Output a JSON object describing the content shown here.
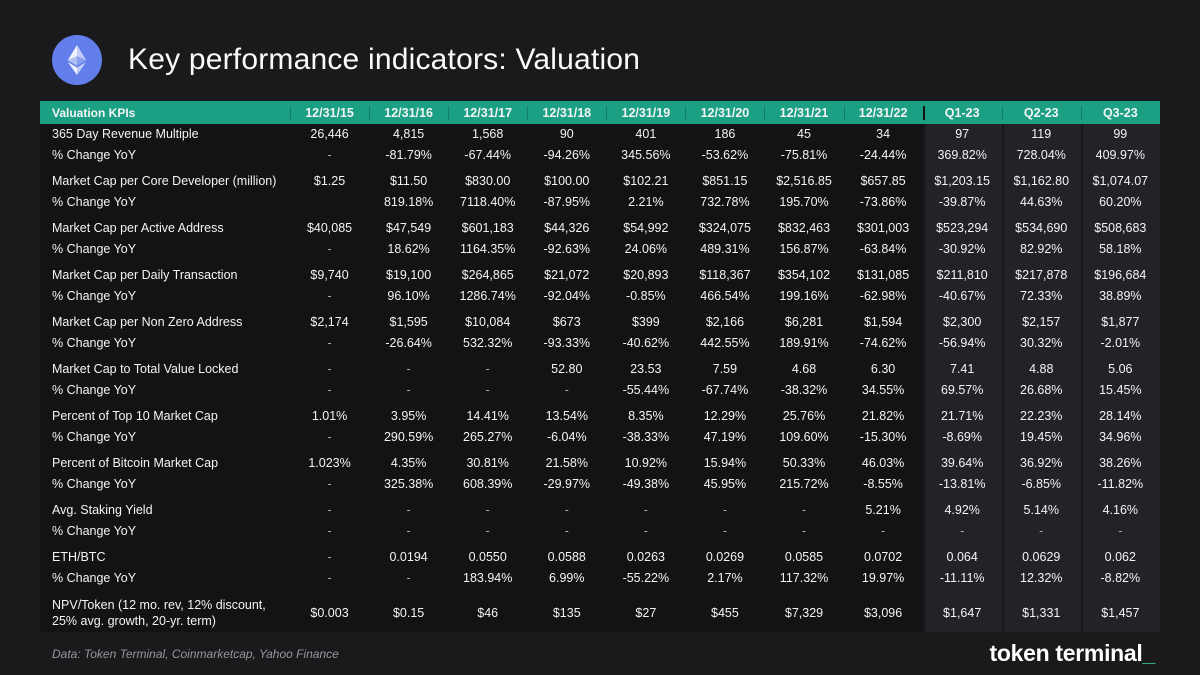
{
  "title": "Key performance indicators: Valuation",
  "colors": {
    "background": "#1a1a1d",
    "table_background": "#131316",
    "header_green": "#1CA084",
    "quarter_band": "#232327",
    "ethereum_blue": "#627EEA",
    "cursor_green": "#2EBD8C"
  },
  "icons": {
    "ethereum_logo": "eth-diamond-in-blue-circle",
    "logo_cursor_glyph": "_"
  },
  "footer": {
    "source": "Data: Token Terminal, Coinmarketcap, Yahoo Finance",
    "logo_text": "token terminal",
    "logo_cursor": "_"
  },
  "chart_data": {
    "type": "table",
    "title": "Key performance indicators: Valuation",
    "columns": [
      "Valuation KPIs",
      "12/31/15",
      "12/31/16",
      "12/31/17",
      "12/31/18",
      "12/31/19",
      "12/31/20",
      "12/31/21",
      "12/31/22",
      "Q1-23",
      "Q2-23",
      "Q3-23"
    ],
    "highlight_columns": [
      "Q1-23",
      "Q2-23",
      "Q3-23"
    ],
    "groups": [
      {
        "rows": [
          {
            "label": "365 Day Revenue Multiple",
            "values": [
              "26,446",
              "4,815",
              "1,568",
              "90",
              "401",
              "186",
              "45",
              "34",
              "97",
              "119",
              "99"
            ]
          },
          {
            "label": "% Change YoY",
            "values": [
              "-",
              "-81.79%",
              "-67.44%",
              "-94.26%",
              "345.56%",
              "-53.62%",
              "-75.81%",
              "-24.44%",
              "369.82%",
              "728.04%",
              "409.97%"
            ]
          }
        ]
      },
      {
        "rows": [
          {
            "label": "Market Cap per Core Developer (million)",
            "values": [
              "$1.25",
              "$11.50",
              "$830.00",
              "$100.00",
              "$102.21",
              "$851.15",
              "$2,516.85",
              "$657.85",
              "$1,203.15",
              "$1,162.80",
              "$1,074.07"
            ]
          },
          {
            "label": "% Change YoY",
            "values": [
              "",
              "819.18%",
              "7118.40%",
              "-87.95%",
              "2.21%",
              "732.78%",
              "195.70%",
              "-73.86%",
              "-39.87%",
              "44.63%",
              "60.20%"
            ]
          }
        ]
      },
      {
        "rows": [
          {
            "label": "Market Cap per Active Address",
            "values": [
              "$40,085",
              "$47,549",
              "$601,183",
              "$44,326",
              "$54,992",
              "$324,075",
              "$832,463",
              "$301,003",
              "$523,294",
              "$534,690",
              "$508,683"
            ]
          },
          {
            "label": "% Change YoY",
            "values": [
              "-",
              "18.62%",
              "1164.35%",
              "-92.63%",
              "24.06%",
              "489.31%",
              "156.87%",
              "-63.84%",
              "-30.92%",
              "82.92%",
              "58.18%"
            ]
          }
        ]
      },
      {
        "rows": [
          {
            "label": "Market Cap per Daily Transaction",
            "values": [
              "$9,740",
              "$19,100",
              "$264,865",
              "$21,072",
              "$20,893",
              "$118,367",
              "$354,102",
              "$131,085",
              "$211,810",
              "$217,878",
              "$196,684"
            ]
          },
          {
            "label": "% Change YoY",
            "values": [
              "-",
              "96.10%",
              "1286.74%",
              "-92.04%",
              "-0.85%",
              "466.54%",
              "199.16%",
              "-62.98%",
              "-40.67%",
              "72.33%",
              "38.89%"
            ]
          }
        ]
      },
      {
        "rows": [
          {
            "label": "Market Cap per Non Zero Address",
            "values": [
              "$2,174",
              "$1,595",
              "$10,084",
              "$673",
              "$399",
              "$2,166",
              "$6,281",
              "$1,594",
              "$2,300",
              "$2,157",
              "$1,877"
            ]
          },
          {
            "label": "% Change YoY",
            "values": [
              "-",
              "-26.64%",
              "532.32%",
              "-93.33%",
              "-40.62%",
              "442.55%",
              "189.91%",
              "-74.62%",
              "-56.94%",
              "30.32%",
              "-2.01%"
            ]
          }
        ]
      },
      {
        "rows": [
          {
            "label": "Market Cap to Total Value Locked",
            "values": [
              "-",
              "-",
              "-",
              "52.80",
              "23.53",
              "7.59",
              "4.68",
              "6.30",
              "7.41",
              "4.88",
              "5.06"
            ]
          },
          {
            "label": "% Change YoY",
            "values": [
              "-",
              "-",
              "-",
              "-",
              "-55.44%",
              "-67.74%",
              "-38.32%",
              "34.55%",
              "69.57%",
              "26.68%",
              "15.45%"
            ]
          }
        ]
      },
      {
        "rows": [
          {
            "label": "Percent of Top 10 Market Cap",
            "values": [
              "1.01%",
              "3.95%",
              "14.41%",
              "13.54%",
              "8.35%",
              "12.29%",
              "25.76%",
              "21.82%",
              "21.71%",
              "22.23%",
              "28.14%"
            ]
          },
          {
            "label": "% Change YoY",
            "values": [
              "-",
              "290.59%",
              "265.27%",
              "-6.04%",
              "-38.33%",
              "47.19%",
              "109.60%",
              "-15.30%",
              "-8.69%",
              "19.45%",
              "34.96%"
            ]
          }
        ]
      },
      {
        "rows": [
          {
            "label": "Percent of Bitcoin Market Cap",
            "values": [
              "1.023%",
              "4.35%",
              "30.81%",
              "21.58%",
              "10.92%",
              "15.94%",
              "50.33%",
              "46.03%",
              "39.64%",
              "36.92%",
              "38.26%"
            ]
          },
          {
            "label": "% Change YoY",
            "values": [
              "-",
              "325.38%",
              "608.39%",
              "-29.97%",
              "-49.38%",
              "45.95%",
              "215.72%",
              "-8.55%",
              "-13.81%",
              "-6.85%",
              "-11.82%"
            ]
          }
        ]
      },
      {
        "rows": [
          {
            "label": "Avg. Staking Yield",
            "values": [
              "-",
              "-",
              "-",
              "-",
              "-",
              "-",
              "-",
              "5.21%",
              "4.92%",
              "5.14%",
              "4.16%"
            ]
          },
          {
            "label": "% Change YoY",
            "values": [
              "-",
              "-",
              "-",
              "-",
              "-",
              "-",
              "-",
              "-",
              "-",
              "-",
              "-"
            ]
          }
        ]
      },
      {
        "rows": [
          {
            "label": "ETH/BTC",
            "values": [
              "-",
              "0.0194",
              "0.0550",
              "0.0588",
              "0.0263",
              "0.0269",
              "0.0585",
              "0.0702",
              "0.064",
              "0.0629",
              "0.062"
            ]
          },
          {
            "label": "% Change YoY",
            "values": [
              "-",
              "-",
              "183.94%",
              "6.99%",
              "-55.22%",
              "2.17%",
              "117.32%",
              "19.97%",
              "-11.11%",
              "12.32%",
              "-8.82%"
            ]
          }
        ]
      },
      {
        "rows": [
          {
            "label": "NPV/Token (12 mo. rev, 12% discount, 25% avg. growth, 20-yr. term)",
            "tall": true,
            "values": [
              "$0.003",
              "$0.15",
              "$46",
              "$135",
              "$27",
              "$455",
              "$7,329",
              "$3,096",
              "$1,647",
              "$1,331",
              "$1,457"
            ]
          }
        ]
      }
    ]
  }
}
